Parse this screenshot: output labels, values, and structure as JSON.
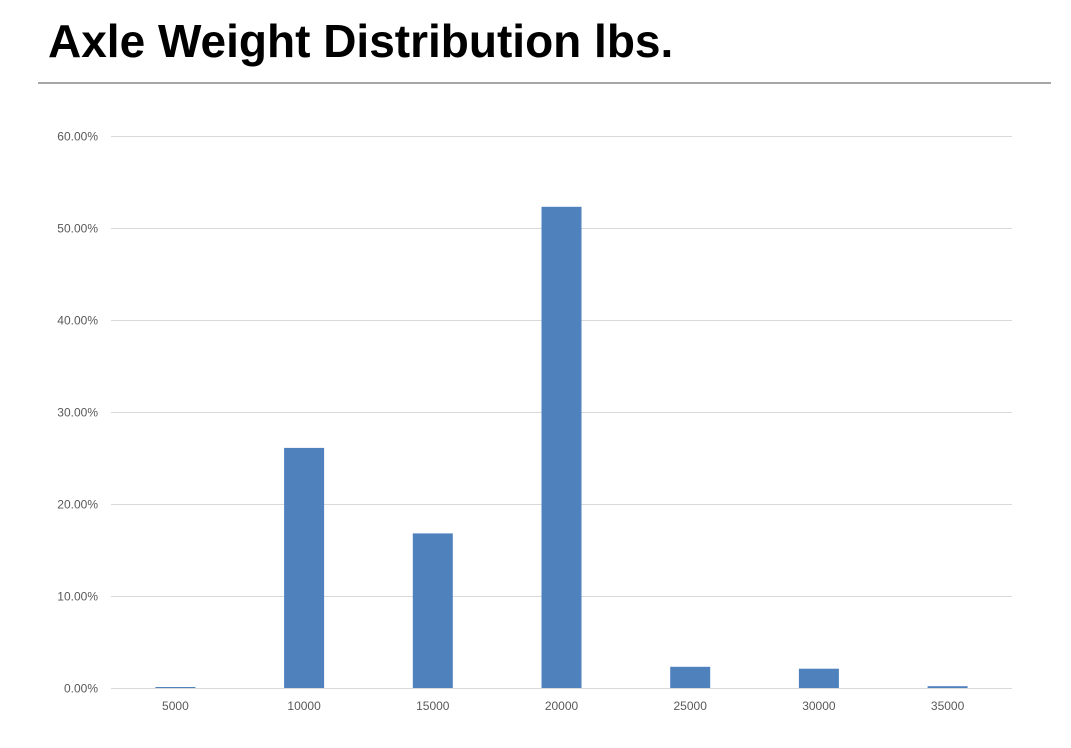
{
  "page": {
    "title": "Axle Weight Distribution lbs."
  },
  "chart_data": {
    "type": "bar",
    "title": "Axle Weight Distribution lbs.",
    "xlabel": "",
    "ylabel": "",
    "categories": [
      "5000",
      "10000",
      "15000",
      "20000",
      "25000",
      "30000",
      "35000"
    ],
    "values": [
      0.1,
      26.1,
      16.8,
      52.3,
      2.3,
      2.1,
      0.2
    ],
    "y_tick_labels": [
      "0.00%",
      "10.00%",
      "20.00%",
      "30.00%",
      "40.00%",
      "50.00%",
      "60.00%"
    ],
    "y_tick_values": [
      0,
      10,
      20,
      30,
      40,
      50,
      60
    ],
    "ylim": [
      0,
      60
    ],
    "y_unit": "percent",
    "grid": true,
    "legend": "none",
    "colors": {
      "bar": "#4f81bd",
      "grid": "#d9d9d9",
      "tick_text": "#595959",
      "title_rule": "#a6a6a6"
    }
  }
}
